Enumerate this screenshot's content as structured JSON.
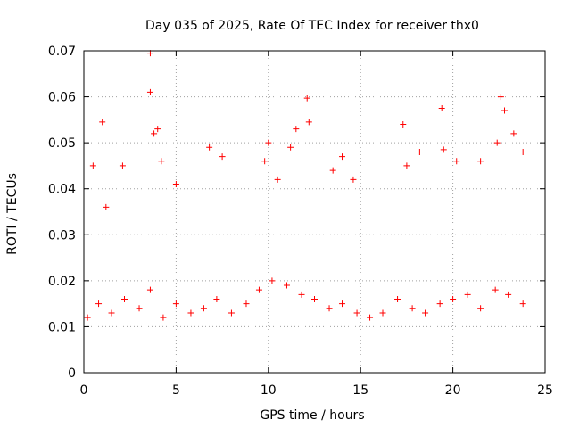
{
  "chart_data": {
    "type": "scatter",
    "title": "Day 035 of 2025, Rate Of TEC Index for receiver thx0",
    "xlabel": "GPS time / hours",
    "ylabel": "ROTI / TECUs",
    "xlim": [
      0,
      25
    ],
    "ylim": [
      0,
      0.07
    ],
    "x_ticks": [
      0,
      5,
      10,
      15,
      20,
      25
    ],
    "y_ticks": [
      0,
      0.01,
      0.02,
      0.03,
      0.04,
      0.05,
      0.06,
      0.07
    ],
    "x_tick_labels": [
      "0",
      "5",
      "10",
      "15",
      "20",
      "25"
    ],
    "y_tick_labels": [
      "0",
      "0.01",
      "0.02",
      "0.03",
      "0.04",
      "0.05",
      "0.06",
      "0.07"
    ],
    "grid": true,
    "marker": "+",
    "color": "#ff0000",
    "series": [
      {
        "x": [
          0.2,
          0.8,
          1.5,
          2.2,
          3.0,
          3.6,
          4.3,
          5.0,
          5.8,
          6.5,
          7.2,
          8.0,
          8.8,
          9.5,
          10.2,
          11.0,
          11.8,
          12.5,
          13.3,
          14.0,
          14.8,
          15.5,
          16.2,
          17.0,
          17.8,
          18.5,
          19.3,
          20.0,
          20.8,
          21.5,
          22.3,
          23.0,
          23.8,
          0.5,
          1.0,
          1.2,
          2.1,
          3.6,
          3.6,
          3.8,
          4.0,
          4.2,
          5.0,
          6.8,
          7.5,
          9.8,
          10.0,
          10.5,
          11.2,
          11.5,
          12.1,
          12.2,
          13.5,
          14.0,
          14.6,
          17.3,
          17.5,
          18.2,
          19.4,
          19.5,
          20.2,
          21.5,
          22.4,
          22.6,
          22.8,
          23.3,
          23.8
        ],
        "y": [
          0.012,
          0.015,
          0.013,
          0.016,
          0.014,
          0.018,
          0.012,
          0.015,
          0.013,
          0.014,
          0.016,
          0.013,
          0.015,
          0.018,
          0.02,
          0.019,
          0.017,
          0.016,
          0.014,
          0.015,
          0.013,
          0.012,
          0.013,
          0.016,
          0.014,
          0.013,
          0.015,
          0.016,
          0.017,
          0.014,
          0.018,
          0.017,
          0.015,
          0.045,
          0.0545,
          0.036,
          0.045,
          0.0695,
          0.061,
          0.052,
          0.053,
          0.046,
          0.041,
          0.049,
          0.047,
          0.046,
          0.05,
          0.042,
          0.049,
          0.053,
          0.0597,
          0.0545,
          0.044,
          0.047,
          0.042,
          0.054,
          0.045,
          0.048,
          0.0575,
          0.0485,
          0.046,
          0.046,
          0.05,
          0.06,
          0.057,
          0.052,
          0.048
        ]
      }
    ]
  }
}
